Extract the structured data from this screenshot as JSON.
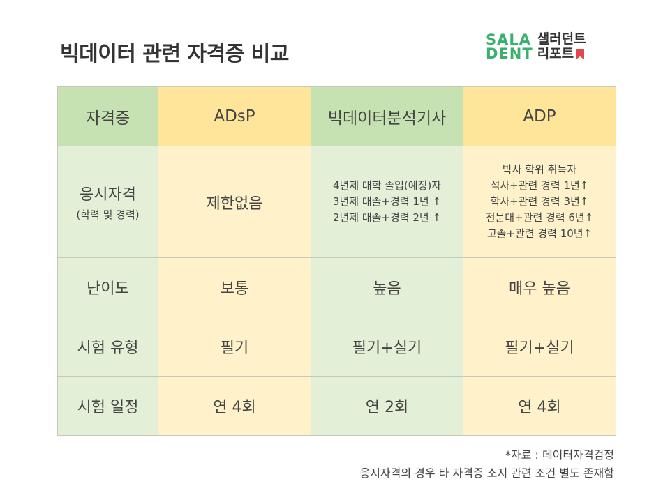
{
  "title": "빅데이터 관련 자격증 비교",
  "logo": {
    "mark_line1": "SALA",
    "mark_line2": "DENT",
    "text_line1": "샐러던트",
    "text_line2": "리포트",
    "mark_color": "#39b06d",
    "bookmark_color": "#e2474b"
  },
  "table": {
    "headers": [
      "자격증",
      "ADsP",
      "빅데이터분석기사",
      "ADP"
    ],
    "qualification": {
      "label": "응시자격",
      "sublabel": "(학력 및 경력)",
      "adsp": "제한없음",
      "bigdata": [
        "4년제 대학 졸업(예정)자",
        "3년제 대졸+경력 1년 ↑",
        "2년제 대졸+경력 2년 ↑"
      ],
      "adp": [
        "박사 학위 취득자",
        "석사+관련 경력 1년↑",
        "학사+관련 경력 3년↑",
        "전문대+관련 경력 6년↑",
        "고졸+관련 경력 10년↑"
      ]
    },
    "difficulty": {
      "label": "난이도",
      "values": [
        "보통",
        "높음",
        "매우 높음"
      ]
    },
    "exam_type": {
      "label": "시험 유형",
      "values": [
        "필기",
        "필기+실기",
        "필기+실기"
      ]
    },
    "schedule": {
      "label": "시험 일정",
      "values": [
        "연 4회",
        "연 2회",
        "연 4회"
      ]
    }
  },
  "footnote": {
    "line1": "*자료 : 데이터자격검정",
    "line2": "응시자격의 경우 타 자격증 소지 관련 조건 별도 존재함"
  },
  "colors": {
    "green_header": "#c6e2b3",
    "green_body": "#e3efd6",
    "yellow_header": "#ffe599",
    "yellow_body": "#fff1c9"
  }
}
